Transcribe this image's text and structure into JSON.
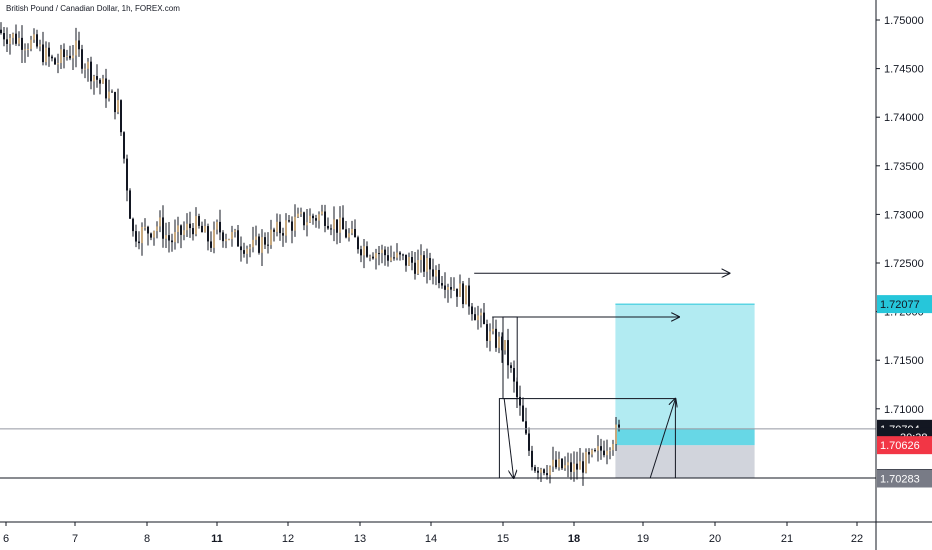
{
  "chart_data": {
    "type": "candlestick",
    "title": "British Pound / Canadian Dollar, 1h, FOREX.com",
    "ylim": [
      1.6995,
      1.7523
    ],
    "x_ticks": [
      {
        "label": "6",
        "bold": false
      },
      {
        "label": "7",
        "bold": false
      },
      {
        "label": "8",
        "bold": false
      },
      {
        "label": "11",
        "bold": true
      },
      {
        "label": "12",
        "bold": false
      },
      {
        "label": "13",
        "bold": false
      },
      {
        "label": "14",
        "bold": false
      },
      {
        "label": "15",
        "bold": false
      },
      {
        "label": "18",
        "bold": true
      },
      {
        "label": "19",
        "bold": false
      },
      {
        "label": "20",
        "bold": false
      },
      {
        "label": "21",
        "bold": false
      },
      {
        "label": "22",
        "bold": false
      }
    ],
    "y_ticks": [
      "1.75000",
      "1.74500",
      "1.74000",
      "1.73500",
      "1.73000",
      "1.72500",
      "1.72000",
      "1.71500",
      "1.71000"
    ],
    "price_tags": [
      {
        "label": "1.72077",
        "value": 1.72077,
        "bg": "#26c6da",
        "fg": "#131722"
      },
      {
        "label": "1.70794",
        "value": 1.70794,
        "bg": "#131722",
        "fg": "#ffffff"
      },
      {
        "label": "30:38",
        "value": 1.7071,
        "bg": "#131722",
        "fg": "#ffffff"
      },
      {
        "label": "1.70626",
        "value": 1.70626,
        "bg": "#f23645",
        "fg": "#ffffff"
      },
      {
        "label": "1.70288",
        "value": 1.70288,
        "bg": "#131722",
        "fg": "#ffffff"
      },
      {
        "label": "1.70283",
        "value": 1.70283,
        "bg": "#787b86",
        "fg": "#ffffff"
      }
    ],
    "horizontal_lines": [
      {
        "value": 1.70794,
        "color": "#9598a1"
      },
      {
        "value": 1.70288,
        "color": "#131722"
      }
    ],
    "position_box": {
      "from_x": 18.6,
      "to_x": 20.55,
      "entry": 1.70626,
      "stop": 1.70283,
      "target": 1.72077,
      "profit_color": "#b2ebf2",
      "loss_color": "#d1d4dc"
    },
    "price_path": [
      [
        5.8,
        1.749
      ],
      [
        6.4,
        1.7475
      ],
      [
        6.7,
        1.7455
      ],
      [
        7.0,
        1.747
      ],
      [
        7.6,
        1.741
      ],
      [
        7.8,
        1.728
      ],
      [
        8.5,
        1.729
      ],
      [
        9.0,
        1.7272
      ],
      [
        10.0,
        1.729
      ],
      [
        10.8,
        1.727
      ],
      [
        11.0,
        1.7285
      ],
      [
        11.5,
        1.7265
      ],
      [
        12.0,
        1.729
      ],
      [
        12.5,
        1.73
      ],
      [
        13.0,
        1.7268
      ],
      [
        13.5,
        1.7255
      ],
      [
        14.0,
        1.7245
      ],
      [
        14.5,
        1.7215
      ],
      [
        14.8,
        1.7175
      ],
      [
        15.1,
        1.716
      ],
      [
        15.4,
        1.713
      ],
      [
        15.7,
        1.71
      ],
      [
        16.0,
        1.7065
      ],
      [
        16.3,
        1.7042
      ],
      [
        18.0,
        1.7038
      ],
      [
        18.3,
        1.705
      ],
      [
        18.6,
        1.7075
      ]
    ],
    "drawings": {
      "arrows_right": [
        {
          "from": [
            14.6,
            1.72395
          ],
          "to": [
            20.2,
            1.72395
          ]
        },
        {
          "from": [
            14.85,
            1.71945
          ],
          "to": [
            19.5,
            1.71945
          ]
        }
      ],
      "rect": {
        "x": [
          15.0,
          15.6
        ],
        "y": [
          1.71105,
          1.71945
        ]
      },
      "pattern_box": {
        "x": [
          14.95,
          19.45
        ],
        "y": [
          1.70288,
          1.71105
        ]
      },
      "down_arrow": {
        "from": [
          15.05,
          1.71105
        ],
        "to": [
          15.45,
          1.70288
        ]
      },
      "up_arrow": {
        "from": [
          19.1,
          1.70288
        ],
        "to": [
          19.45,
          1.71105
        ]
      }
    }
  }
}
